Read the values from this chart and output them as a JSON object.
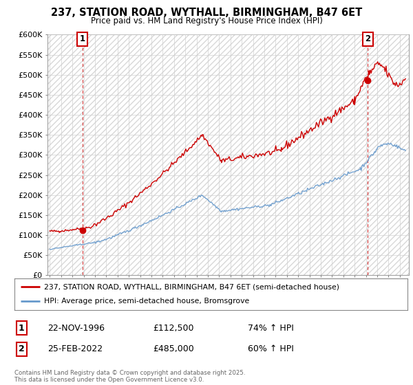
{
  "title": "237, STATION ROAD, WYTHALL, BIRMINGHAM, B47 6ET",
  "subtitle": "Price paid vs. HM Land Registry's House Price Index (HPI)",
  "red_label": "237, STATION ROAD, WYTHALL, BIRMINGHAM, B47 6ET (semi-detached house)",
  "blue_label": "HPI: Average price, semi-detached house, Bromsgrove",
  "annotation1": {
    "num": "1",
    "date": "22-NOV-1996",
    "price": "£112,500",
    "info": "74% ↑ HPI"
  },
  "annotation2": {
    "num": "2",
    "date": "25-FEB-2022",
    "price": "£485,000",
    "info": "60% ↑ HPI"
  },
  "footer": "Contains HM Land Registry data © Crown copyright and database right 2025.\nThis data is licensed under the Open Government Licence v3.0.",
  "ylim": [
    0,
    600000
  ],
  "yticks": [
    0,
    50000,
    100000,
    150000,
    200000,
    250000,
    300000,
    350000,
    400000,
    450000,
    500000,
    550000,
    600000
  ],
  "ytick_labels": [
    "£0",
    "£50K",
    "£100K",
    "£150K",
    "£200K",
    "£250K",
    "£300K",
    "£350K",
    "£400K",
    "£450K",
    "£500K",
    "£550K",
    "£600K"
  ],
  "background_color": "#ffffff",
  "plot_bg_color": "#ffffff",
  "red_color": "#cc0000",
  "blue_color": "#6699cc",
  "marker1_x": 1996.9,
  "marker1_y": 112500,
  "marker2_x": 2022.15,
  "marker2_y": 485000,
  "xlim_left": 1993.8,
  "xlim_right": 2025.8
}
